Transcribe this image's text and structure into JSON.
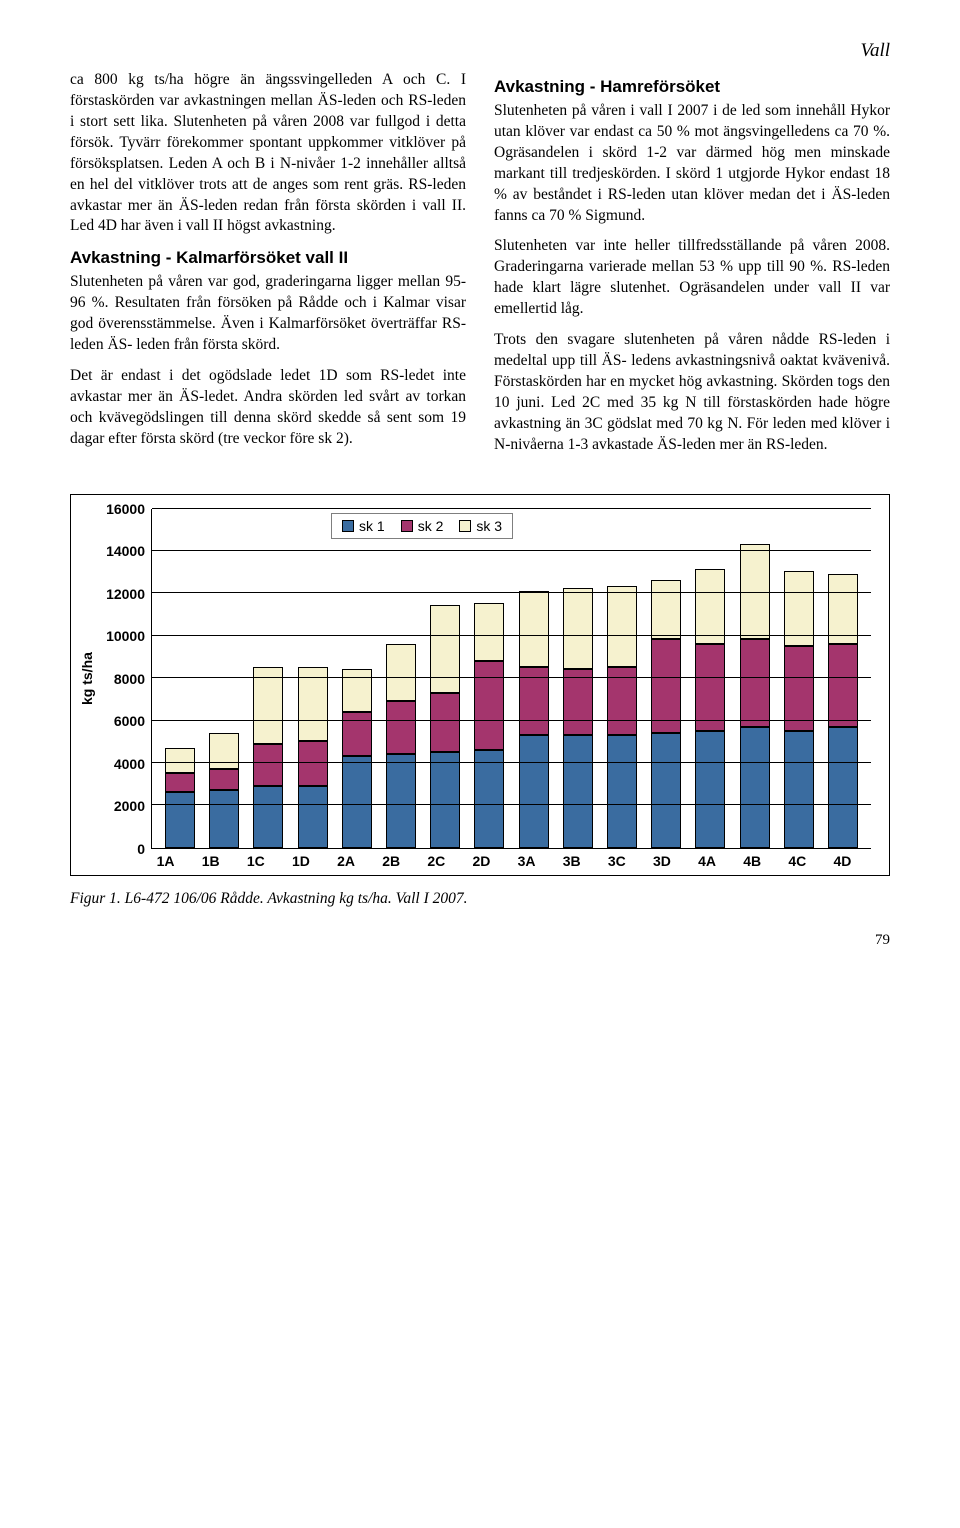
{
  "header": {
    "section": "Vall"
  },
  "left_col": {
    "p1": "ca 800 kg ts/ha högre än ängssvingelleden A och C. I förstaskörden var avkastningen mellan ÄS-leden och RS-leden i stort sett lika. Slutenheten på våren 2008 var fullgod i detta försök. Tyvärr förekommer spontant uppkommer vitklöver på försöksplatsen. Leden A och B i N-nivåer 1-2 innehåller alltså en hel del vitklöver trots att de anges som rent gräs. RS-leden avkastar mer än ÄS-leden redan från första skörden i vall II. Led 4D har även i vall II högst avkastning.",
    "h1": "Avkastning - Kalmarförsöket vall II",
    "p2": "Slutenheten på våren var god, graderingarna ligger mellan 95-96 %. Resultaten från försöken på Rådde och i Kalmar visar god överensstämmelse. Även i Kalmarförsöket överträffar RS- leden ÄS- leden från första skörd.",
    "p3": "Det är endast i det ogödslade ledet 1D som RS-ledet inte avkastar mer än ÄS-ledet. Andra skörden led svårt av torkan och kvävegödslingen till denna skörd skedde så sent som 19 dagar efter första skörd (tre veckor före sk 2)."
  },
  "right_col": {
    "h1": "Avkastning - Hamreförsöket",
    "p1": "Slutenheten på våren i vall I 2007 i de led som innehåll Hykor utan klöver var endast ca 50 % mot ängsvingelledens ca 70 %. Ogräsandelen i skörd 1-2 var därmed hög men minskade markant till tredjeskörden. I skörd 1 utgjorde Hykor endast 18 % av beståndet i RS-leden utan klöver medan det i ÄS-leden fanns ca 70 % Sigmund.",
    "p2": "Slutenheten var inte heller tillfredsställande på våren 2008. Graderingarna varierade mellan 53 % upp till 90 %. RS-leden hade klart lägre slutenhet. Ogräsandelen under vall II var emellertid låg.",
    "p3": "Trots den svagare slutenheten på våren nådde RS-leden i medeltal upp till ÄS- ledens avkastningsnivå oaktat kvävenivå. Förstaskörden har en mycket hög avkastning. Skörden togs den 10 juni. Led 2C med 35 kg N till förstaskörden hade högre avkastning än 3C gödslat med 70 kg N. För leden med klöver i N-nivåerna 1-3 avkastade ÄS-leden mer än RS-leden."
  },
  "chart": {
    "type": "stacked-bar",
    "y_label": "kg ts/ha",
    "y_max": 16000,
    "y_ticks": [
      0,
      2000,
      4000,
      6000,
      8000,
      10000,
      12000,
      14000,
      16000
    ],
    "legend": [
      "sk 1",
      "sk 2",
      "sk 3"
    ],
    "colors": {
      "sk1": "#3a6ca0",
      "sk2": "#a4356d",
      "sk3": "#f6f2cf"
    },
    "grid_color": "#000000",
    "background": "#ffffff",
    "categories": [
      "1A",
      "1B",
      "1C",
      "1D",
      "2A",
      "2B",
      "2C",
      "2D",
      "3A",
      "3B",
      "3C",
      "3D",
      "4A",
      "4B",
      "4C",
      "4D"
    ],
    "series": {
      "sk1": [
        2600,
        2700,
        2900,
        2900,
        4300,
        4400,
        4500,
        4600,
        5300,
        5300,
        5300,
        5400,
        5500,
        5700,
        5500,
        5700
      ],
      "sk2": [
        900,
        1000,
        2000,
        2100,
        2100,
        2500,
        2800,
        4200,
        3200,
        3100,
        3200,
        4400,
        4100,
        4100,
        4000,
        3900
      ],
      "sk3": [
        1200,
        1700,
        3600,
        3500,
        2000,
        2700,
        4100,
        2700,
        3600,
        3800,
        3800,
        2800,
        3500,
        4500,
        3500,
        3300
      ]
    }
  },
  "caption": "Figur 1. L6-472 106/06 Rådde. Avkastning kg ts/ha. Vall I 2007.",
  "page": "79"
}
